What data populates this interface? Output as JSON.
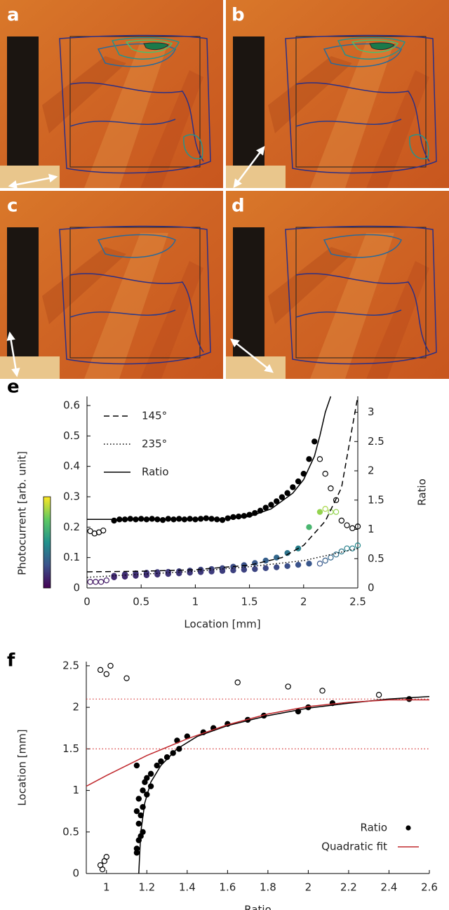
{
  "panel_labels": [
    "a",
    "b",
    "c",
    "d"
  ],
  "chart_data": [
    {
      "type": "line",
      "label": "e",
      "xlabel": "Location [mm]",
      "ylabel": "Photocurrent [arb. unit]",
      "y2label": "Ratio",
      "xlim": [
        0,
        2.5
      ],
      "ylim": [
        0,
        0.63
      ],
      "y2lim": [
        0,
        3.27
      ],
      "xticks": [
        0,
        0.5,
        1,
        1.5,
        2,
        2.5
      ],
      "yticks": [
        0,
        0.1,
        0.2,
        0.3,
        0.4,
        0.5,
        0.6
      ],
      "y2ticks": [
        0,
        0.5,
        1,
        1.5,
        2,
        2.5,
        3
      ],
      "legend": "upper left",
      "colorbar": {
        "lim": [
          0,
          0.3
        ]
      },
      "series": [
        {
          "name": "145°",
          "color": "#000000",
          "dash": "dashed",
          "x": [
            0,
            0.5,
            1,
            1.5,
            1.8,
            2,
            2.2,
            2.35,
            2.5
          ],
          "values": [
            0.053,
            0.055,
            0.06,
            0.075,
            0.1,
            0.14,
            0.22,
            0.33,
            0.63
          ]
        },
        {
          "name": "235°",
          "color": "#000000",
          "dash": "dotted",
          "x": [
            0,
            0.5,
            1,
            1.5,
            2,
            2.5
          ],
          "values": [
            0.035,
            0.045,
            0.055,
            0.07,
            0.09,
            0.13
          ]
        },
        {
          "name": "Ratio",
          "color": "#000000",
          "dash": "solid",
          "axis": "y2",
          "x": [
            0,
            0.5,
            1,
            1.3,
            1.5,
            1.7,
            1.9,
            2.0,
            2.1,
            2.15,
            2.2,
            2.25
          ],
          "values": [
            1.17,
            1.17,
            1.17,
            1.18,
            1.22,
            1.35,
            1.62,
            1.85,
            2.25,
            2.6,
            3.0,
            3.27
          ]
        }
      ],
      "points": [
        {
          "marker": "filled",
          "color": "#000000",
          "axis": "y2",
          "x": [
            0.25,
            0.3,
            0.35,
            0.4,
            0.45,
            0.5,
            0.55,
            0.6,
            0.65,
            0.7,
            0.75,
            0.8,
            0.85,
            0.9,
            0.95,
            1.0,
            1.05,
            1.1,
            1.15,
            1.2,
            1.25,
            1.3,
            1.35,
            1.4,
            1.45,
            1.5,
            1.55,
            1.6,
            1.65,
            1.7,
            1.75,
            1.8,
            1.85,
            1.9,
            1.95,
            2.0,
            2.05,
            2.1
          ],
          "values": [
            1.15,
            1.17,
            1.17,
            1.18,
            1.17,
            1.18,
            1.17,
            1.18,
            1.17,
            1.16,
            1.18,
            1.17,
            1.18,
            1.17,
            1.18,
            1.17,
            1.18,
            1.19,
            1.18,
            1.17,
            1.16,
            1.19,
            1.21,
            1.22,
            1.23,
            1.25,
            1.28,
            1.32,
            1.37,
            1.42,
            1.48,
            1.55,
            1.62,
            1.72,
            1.82,
            1.95,
            2.2,
            2.5
          ]
        },
        {
          "marker": "open",
          "color": "#000000",
          "axis": "y2",
          "x": [
            0.03,
            0.07,
            0.11,
            0.15,
            2.15,
            2.2,
            2.25,
            2.3,
            2.35,
            2.4,
            2.45,
            2.5
          ],
          "values": [
            0.97,
            0.93,
            0.95,
            0.98,
            2.2,
            1.95,
            1.7,
            1.5,
            1.15,
            1.07,
            1.02,
            1.05
          ]
        },
        {
          "marker": "filled",
          "color": "colormap",
          "x": [
            0.25,
            0.35,
            0.45,
            0.55,
            0.65,
            0.75,
            0.85,
            0.95,
            1.05,
            1.15,
            1.25,
            1.35,
            1.45,
            1.55,
            1.65,
            1.75,
            1.85,
            1.95,
            2.05,
            2.15
          ],
          "values": [
            0.04,
            0.045,
            0.048,
            0.05,
            0.052,
            0.053,
            0.055,
            0.057,
            0.06,
            0.062,
            0.065,
            0.07,
            0.075,
            0.082,
            0.09,
            0.1,
            0.115,
            0.13,
            0.2,
            0.25
          ]
        },
        {
          "marker": "open",
          "color": "colormap",
          "x": [
            0.03,
            0.08,
            0.13,
            0.18,
            2.2,
            2.25,
            2.3
          ],
          "values": [
            0.02,
            0.02,
            0.02,
            0.025,
            0.26,
            0.25,
            0.25
          ]
        },
        {
          "marker": "filled",
          "color": "colormap",
          "x": [
            0.25,
            0.35,
            0.45,
            0.55,
            0.65,
            0.75,
            0.85,
            0.95,
            1.05,
            1.15,
            1.25,
            1.35,
            1.45,
            1.55,
            1.65,
            1.75,
            1.85,
            1.95,
            2.05
          ],
          "values": [
            0.035,
            0.037,
            0.04,
            0.042,
            0.044,
            0.046,
            0.048,
            0.05,
            0.052,
            0.054,
            0.056,
            0.058,
            0.06,
            0.062,
            0.065,
            0.068,
            0.072,
            0.076,
            0.08
          ]
        },
        {
          "marker": "open",
          "color": "colormap",
          "x": [
            2.15,
            2.2,
            2.25,
            2.3,
            2.35,
            2.4,
            2.45,
            2.5
          ],
          "values": [
            0.08,
            0.09,
            0.1,
            0.11,
            0.12,
            0.13,
            0.13,
            0.14
          ]
        }
      ]
    },
    {
      "type": "scatter",
      "label": "f",
      "xlabel": "Ratio",
      "ylabel": "Location [mm]",
      "xlim": [
        0.9,
        2.6
      ],
      "ylim": [
        0,
        2.55
      ],
      "xticks": [
        1,
        1.2,
        1.4,
        1.6,
        1.8,
        2,
        2.2,
        2.4,
        2.6
      ],
      "yticks": [
        0,
        0.5,
        1,
        1.5,
        2,
        2.5
      ],
      "legend": "lower right",
      "hlines": {
        "values": [
          1.5,
          2.1
        ],
        "color": "#d43030"
      },
      "series": [
        {
          "name": "Ratio",
          "marker": "filled",
          "color": "#000000",
          "x": [
            1.15,
            1.15,
            1.16,
            1.17,
            1.18,
            1.16,
            1.17,
            1.15,
            1.18,
            1.16,
            1.2,
            1.18,
            1.19,
            1.22,
            1.2,
            1.15,
            1.22,
            1.25,
            1.27,
            1.3,
            1.33,
            1.36,
            1.35,
            1.4,
            1.48,
            1.53,
            1.6,
            1.7,
            1.78,
            1.95,
            2.0,
            2.12,
            2.5
          ],
          "values": [
            0.25,
            0.3,
            0.4,
            0.45,
            0.5,
            0.6,
            0.7,
            0.75,
            0.8,
            0.9,
            0.95,
            1.0,
            1.1,
            1.05,
            1.15,
            1.3,
            1.2,
            1.3,
            1.35,
            1.4,
            1.45,
            1.5,
            1.6,
            1.65,
            1.7,
            1.75,
            1.8,
            1.85,
            1.9,
            1.95,
            2.0,
            2.05,
            2.1
          ]
        },
        {
          "name": "Quadratic fit",
          "color": "#c0282d",
          "dash": "solid",
          "x": [
            0.9,
            1.0,
            1.2,
            1.4,
            1.6,
            1.8,
            2.0,
            2.2,
            2.4,
            2.6
          ],
          "values": [
            1.05,
            1.18,
            1.42,
            1.62,
            1.79,
            1.92,
            2.01,
            2.06,
            2.09,
            2.09
          ]
        }
      ],
      "points": [
        {
          "marker": "open",
          "color": "#000000",
          "x": [
            0.97,
            1.0,
            1.02,
            1.1,
            0.97,
            0.98,
            0.99,
            1.0,
            1.65,
            1.9,
            2.07,
            2.35
          ],
          "values": [
            2.45,
            2.4,
            2.5,
            2.35,
            0.1,
            0.05,
            0.15,
            0.2,
            2.3,
            2.25,
            2.2,
            2.15
          ]
        },
        {
          "color": "#000000",
          "dash": "solid",
          "x": [
            1.16,
            1.17,
            1.19,
            1.22,
            1.27,
            1.35,
            1.45,
            1.6,
            1.8,
            2.0,
            2.2,
            2.4,
            2.6
          ],
          "values": [
            0,
            0.5,
            0.85,
            1.1,
            1.3,
            1.5,
            1.65,
            1.78,
            1.9,
            1.99,
            2.05,
            2.1,
            2.13
          ]
        }
      ]
    }
  ]
}
